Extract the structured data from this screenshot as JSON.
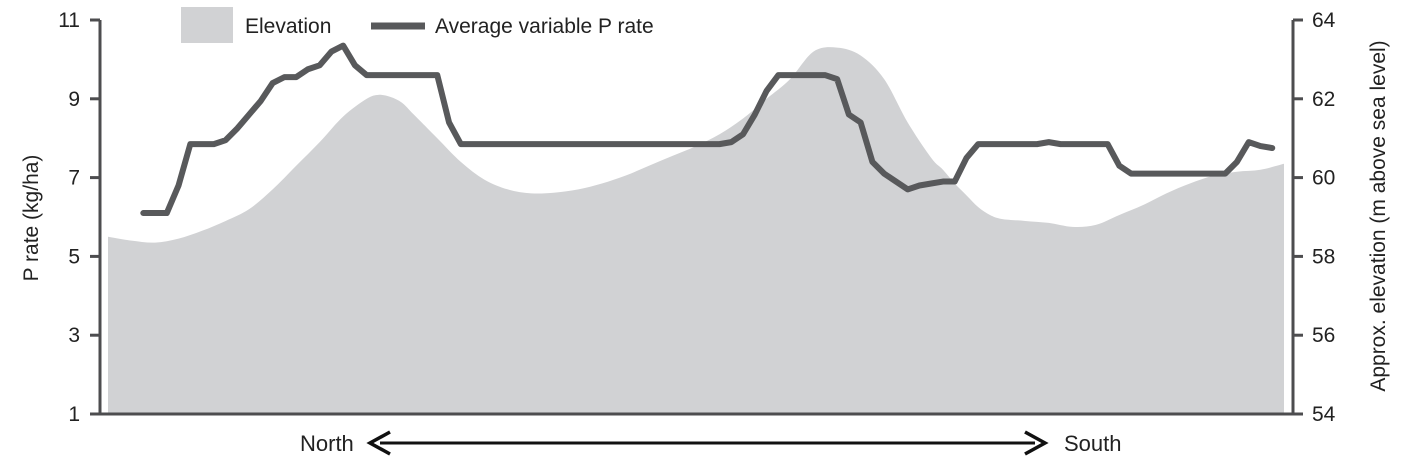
{
  "chart_data": {
    "type": "line",
    "title": "",
    "ylabel": "P rate (kg/ha)",
    "y2label": "Approx. elevation (m above sea level)",
    "ylim": [
      1,
      11
    ],
    "y2lim": [
      54,
      64
    ],
    "yticks": [
      "1",
      "3",
      "5",
      "7",
      "9",
      "11"
    ],
    "y2ticks": [
      "54",
      "56",
      "58",
      "60",
      "62",
      "64"
    ],
    "grid": false,
    "legend_position": "top-left",
    "direction": {
      "left": "North",
      "right": "South"
    },
    "x": [
      0,
      0.5,
      1,
      2,
      3,
      4,
      5,
      6,
      7,
      8,
      9,
      10,
      11,
      12,
      13,
      14,
      15,
      16,
      17,
      18,
      19,
      20,
      21,
      22,
      23,
      24,
      25,
      26,
      27,
      28,
      29,
      30,
      31,
      32,
      33,
      34,
      35,
      36,
      37,
      38,
      39,
      40,
      41,
      42,
      43,
      44,
      45,
      46,
      47,
      48,
      49,
      50,
      51,
      52,
      53,
      54,
      55,
      56,
      57,
      58,
      59,
      60,
      61,
      62,
      63,
      64,
      65,
      66,
      67,
      68,
      69,
      70,
      71,
      72,
      73,
      74,
      75,
      76,
      77,
      78,
      79,
      80,
      81,
      82,
      83,
      84,
      85,
      86,
      87,
      88,
      89,
      90,
      91,
      92,
      93,
      94,
      95,
      96,
      97,
      98,
      99,
      100
    ],
    "series": [
      {
        "name": "Elevation",
        "axis": "right",
        "style": "area",
        "color": "#d1d2d4",
        "x": [
          0,
          2,
          4,
          6,
          8,
          10,
          12,
          14,
          16,
          18,
          20,
          22,
          23,
          24,
          25,
          26,
          28,
          30,
          32,
          34,
          36,
          38,
          40,
          42,
          44,
          46,
          48,
          50,
          52,
          54,
          56,
          58,
          60,
          62,
          64,
          66,
          68,
          70,
          71,
          72,
          73,
          74,
          75,
          76,
          78,
          80,
          82,
          84,
          86,
          88,
          90,
          92,
          94,
          96,
          98,
          100
        ],
        "values": [
          58.5,
          58.4,
          58.35,
          58.45,
          58.65,
          58.9,
          59.2,
          59.7,
          60.3,
          60.9,
          61.55,
          62.0,
          62.1,
          62.05,
          61.9,
          61.6,
          61.0,
          60.4,
          59.95,
          59.7,
          59.6,
          59.62,
          59.7,
          59.85,
          60.05,
          60.3,
          60.55,
          60.8,
          61.1,
          61.5,
          62.0,
          62.5,
          63.2,
          63.3,
          63.1,
          62.5,
          61.4,
          60.5,
          60.2,
          59.85,
          59.55,
          59.25,
          59.05,
          58.95,
          58.9,
          58.85,
          58.75,
          58.8,
          59.05,
          59.3,
          59.6,
          59.85,
          60.05,
          60.15,
          60.2,
          60.35
        ]
      },
      {
        "name": "Average variable P rate",
        "axis": "left",
        "style": "line",
        "color": "#58595b",
        "x": [
          3,
          5,
          6,
          7,
          8,
          9,
          10,
          11,
          12,
          13,
          14,
          15,
          16,
          17,
          18,
          19,
          20,
          21,
          22,
          23,
          24,
          25,
          26,
          27,
          28,
          29,
          30,
          31,
          32,
          33,
          34,
          35,
          36,
          37,
          38,
          39,
          40,
          41,
          42,
          43,
          44,
          45,
          46,
          47,
          48,
          49,
          50,
          51,
          52,
          53,
          54,
          55,
          56,
          57,
          58,
          59,
          60,
          61,
          62,
          63,
          64,
          65,
          66,
          67,
          68,
          69,
          70,
          71,
          72,
          73,
          74,
          75,
          76,
          77,
          78,
          79,
          80,
          81,
          82,
          83,
          84,
          85,
          86,
          87,
          88,
          89,
          90,
          91,
          92,
          93,
          94,
          95,
          96,
          97,
          98,
          99
        ],
        "values": [
          6.1,
          6.1,
          6.8,
          7.85,
          7.85,
          7.85,
          7.95,
          8.25,
          8.6,
          8.95,
          9.4,
          9.55,
          9.55,
          9.75,
          9.85,
          10.2,
          10.35,
          9.85,
          9.6,
          9.6,
          9.6,
          9.6,
          9.6,
          9.6,
          9.6,
          8.4,
          7.85,
          7.85,
          7.85,
          7.85,
          7.85,
          7.85,
          7.85,
          7.85,
          7.85,
          7.85,
          7.85,
          7.85,
          7.85,
          7.85,
          7.85,
          7.85,
          7.85,
          7.85,
          7.85,
          7.85,
          7.85,
          7.85,
          7.85,
          7.9,
          8.1,
          8.6,
          9.2,
          9.6,
          9.6,
          9.6,
          9.6,
          9.6,
          9.5,
          8.6,
          8.4,
          7.4,
          7.1,
          6.9,
          6.7,
          6.8,
          6.85,
          6.9,
          6.9,
          7.5,
          7.85,
          7.85,
          7.85,
          7.85,
          7.85,
          7.85,
          7.9,
          7.85,
          7.85,
          7.85,
          7.85,
          7.85,
          7.3,
          7.1,
          7.1,
          7.1,
          7.1,
          7.1,
          7.1,
          7.1,
          7.1,
          7.1,
          7.4,
          7.9,
          7.8,
          7.75
        ]
      }
    ]
  },
  "legend": {
    "elevation_label": "Elevation",
    "prate_label": "Average variable P rate"
  },
  "colors": {
    "elevation_fill": "#d1d2d4",
    "line": "#58595b",
    "axis": "#4d4d4f"
  }
}
